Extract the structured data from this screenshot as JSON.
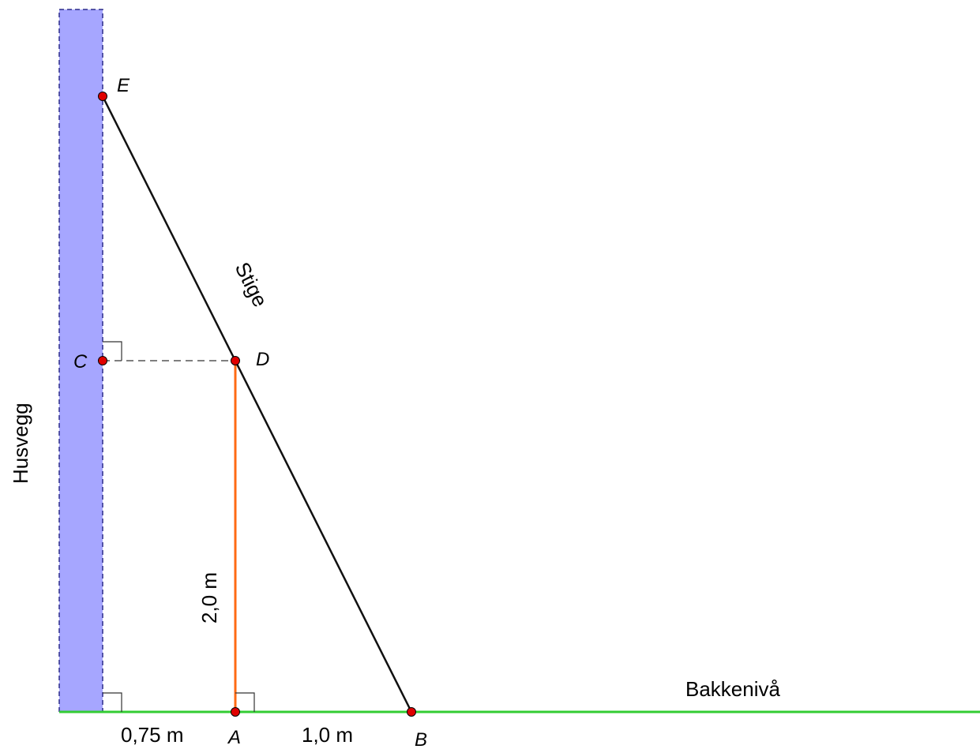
{
  "labels": {
    "wall": "Husvegg",
    "ground": "Bakkenivå",
    "ladder": "Stige",
    "height": "2,0 m",
    "dist_wall_A": "0,75 m",
    "dist_A_B": "1,0 m"
  },
  "points": {
    "A": "A",
    "B": "B",
    "C": "C",
    "D": "D",
    "E": "E"
  },
  "colors": {
    "wall_fill": "#a6a6ff",
    "wall_stroke": "#2b2b8a",
    "ground": "#33cc33",
    "height_segment": "#ff6a13",
    "ladder": "#111111",
    "point": "#e00000"
  }
}
